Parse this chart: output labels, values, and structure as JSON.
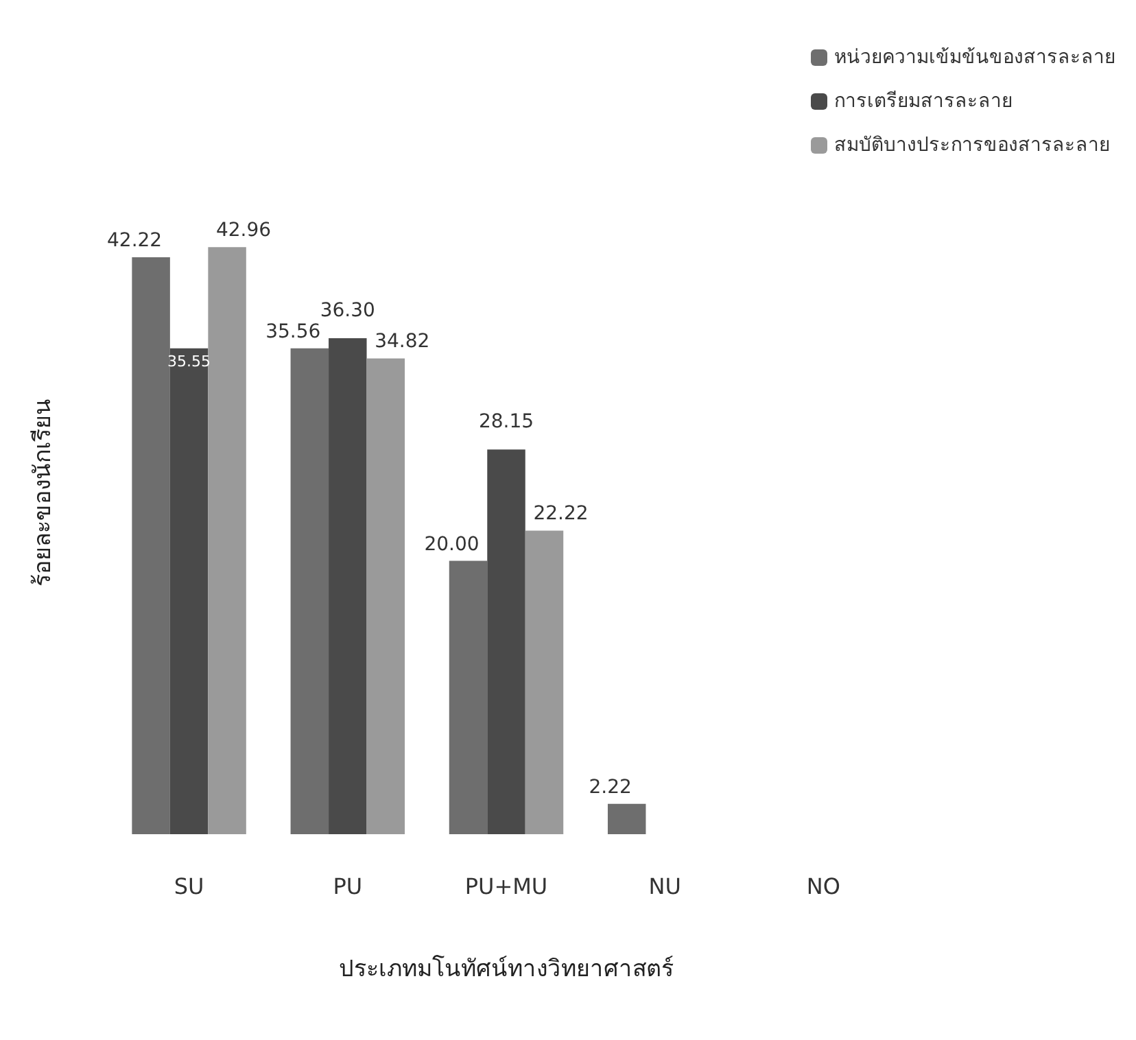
{
  "chart_data": {
    "type": "bar",
    "xlabel": "ประเภทมโนทัศน์ทางวิทยาศาสตร์",
    "ylabel": "ร้อยละของนักเรียน",
    "categories": [
      "SU",
      "PU",
      "PU+MU",
      "NU",
      "NO"
    ],
    "series": [
      {
        "name": "หน่วยความเข้มข้นของสารละลาย",
        "color": "#6e6e6e",
        "values": [
          42.22,
          35.56,
          20.0,
          2.22,
          null
        ],
        "value_labels": [
          "42.22",
          "35.56",
          "20.00",
          "2.22",
          null
        ]
      },
      {
        "name": "การเตรียมสารละลาย",
        "color": "#4a4a4a",
        "values": [
          35.55,
          36.3,
          28.15,
          null,
          null
        ],
        "value_labels": [
          "35.55",
          "36.30",
          "28.15",
          null,
          null
        ]
      },
      {
        "name": "สมบัติบางประการของสารละลาย",
        "color": "#9a9a9a",
        "values": [
          42.96,
          34.82,
          22.22,
          null,
          null
        ],
        "value_labels": [
          "42.96",
          "34.82",
          "22.22",
          null,
          null
        ]
      }
    ],
    "grid": false,
    "legend": "top right",
    "tick_labels": "x"
  }
}
